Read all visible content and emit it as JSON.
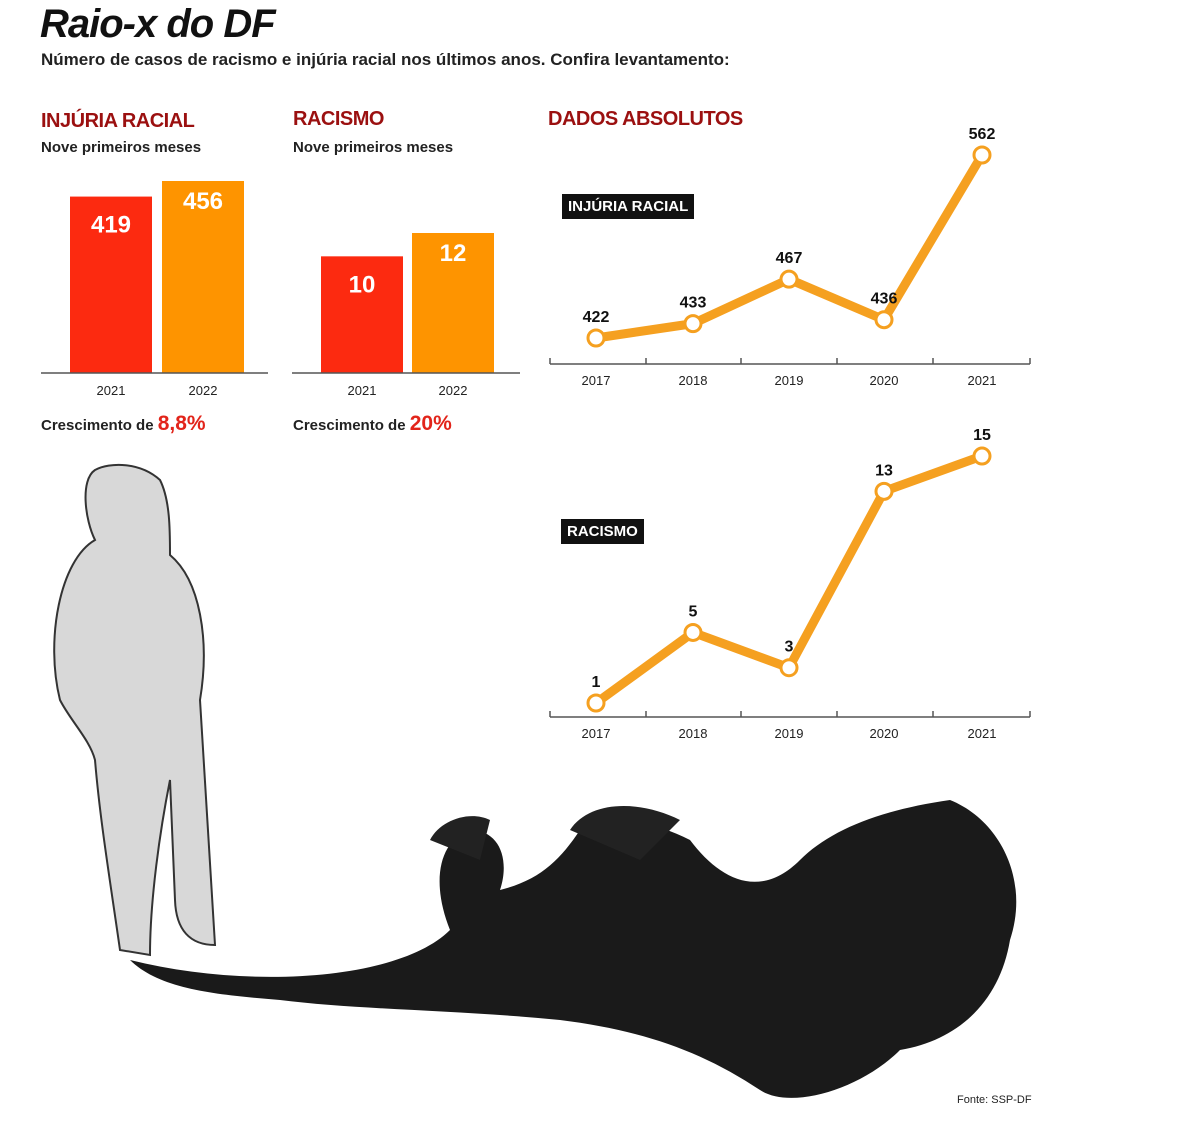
{
  "title": "Raio-x do DF",
  "subtitle": "Número de casos de racismo e injúria racial nos últimos anos. Confira levantamento:",
  "colors": {
    "c2021": "#fc2a10",
    "c2022": "#fe9400",
    "line": "#f5a020",
    "heading": "#9b1010"
  },
  "chart_data": [
    {
      "type": "bar",
      "title": "INJÚRIA RACIAL",
      "subtitle": "Nove primeiros meses",
      "categories": [
        "2021",
        "2022"
      ],
      "values": [
        419,
        456
      ],
      "growth_label": "Crescimento de",
      "growth_value": "8,8%"
    },
    {
      "type": "bar",
      "title": "RACISMO",
      "subtitle": "Nove primeiros meses",
      "categories": [
        "2021",
        "2022"
      ],
      "values": [
        10,
        12
      ],
      "growth_label": "Crescimento de",
      "growth_value": "20%"
    },
    {
      "type": "line",
      "title": "DADOS ABSOLUTOS",
      "series_label": "INJÚRIA RACIAL",
      "x": [
        "2017",
        "2018",
        "2019",
        "2020",
        "2021"
      ],
      "values": [
        422,
        433,
        467,
        436,
        562
      ]
    },
    {
      "type": "line",
      "series_label": "RACISMO",
      "x": [
        "2017",
        "2018",
        "2019",
        "2020",
        "2021"
      ],
      "values": [
        1,
        5,
        3,
        13,
        15
      ]
    }
  ],
  "source": "Fonte: SSP-DF"
}
